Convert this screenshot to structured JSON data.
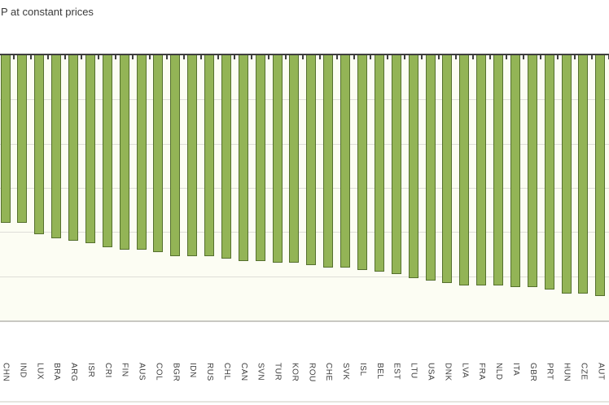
{
  "chart_data": {
    "type": "bar",
    "orientation": "vertical-negative",
    "title": "P at constant prices",
    "xlabel": "",
    "ylabel": "",
    "legend": "none",
    "grid": "horizontal",
    "y_axis": {
      "max": 0,
      "min": -12,
      "gridline_interval": 2,
      "tick_labels_visible": false,
      "note": "value-axis tick labels are cropped out of the visible image; values estimated from gridlines"
    },
    "bar_color": "#93b456",
    "bar_border_color": "#55702e",
    "categories": [
      "CHN",
      "IND",
      "LUX",
      "BRA",
      "ARG",
      "ISR",
      "CRI",
      "FIN",
      "AUS",
      "COL",
      "BGR",
      "IDN",
      "RUS",
      "CHL",
      "CAN",
      "SVN",
      "TUR",
      "KOR",
      "ROU",
      "CHE",
      "SVK",
      "ISL",
      "BEL",
      "EST",
      "LTU",
      "USA",
      "DNK",
      "LVA",
      "FRA",
      "NLD",
      "ITA",
      "GBR",
      "PRT",
      "HUN",
      "CZE",
      "AUT"
    ],
    "values": [
      -7.6,
      -7.6,
      -8.1,
      -8.3,
      -8.4,
      -8.5,
      -8.7,
      -8.8,
      -8.8,
      -8.9,
      -9.1,
      -9.1,
      -9.1,
      -9.2,
      -9.3,
      -9.3,
      -9.4,
      -9.4,
      -9.5,
      -9.6,
      -9.6,
      -9.7,
      -9.8,
      -9.9,
      -10.1,
      -10.2,
      -10.3,
      -10.4,
      -10.4,
      -10.4,
      -10.5,
      -10.5,
      -10.6,
      -10.8,
      -10.8,
      -10.9
    ]
  }
}
